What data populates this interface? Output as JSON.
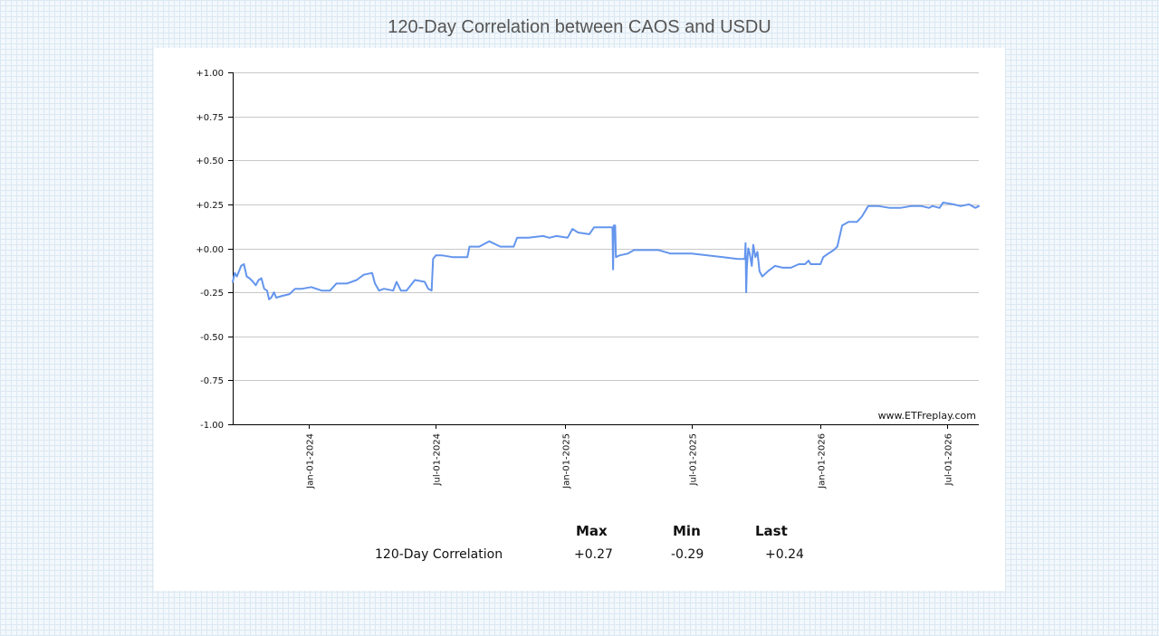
{
  "page": {
    "title": "120-Day Correlation between CAOS and USDU"
  },
  "watermark": "www.ETFreplay.com",
  "stats": {
    "headers": {
      "max": "Max",
      "min": "Min",
      "last": "Last"
    },
    "row": {
      "label": "120-Day Correlation",
      "max": "+0.27",
      "min": "-0.29",
      "last": "+0.24"
    }
  },
  "colors": {
    "line": "#6495ed",
    "grid": "#c8c8c8",
    "axis": "#000000"
  },
  "chart_data": {
    "type": "line",
    "title": "120-Day Correlation between CAOS and USDU",
    "xlabel": "",
    "ylabel": "",
    "ylim": [
      -1.0,
      1.0
    ],
    "xlim": [
      "2023-09-15",
      "2026-08-15"
    ],
    "grid": true,
    "legend": "none",
    "y_ticks": [
      {
        "value": 1.0,
        "label": "+1.00"
      },
      {
        "value": 0.75,
        "label": "+0.75"
      },
      {
        "value": 0.5,
        "label": "+0.50"
      },
      {
        "value": 0.25,
        "label": "+0.25"
      },
      {
        "value": 0.0,
        "label": "+0.00"
      },
      {
        "value": -0.25,
        "label": "-0.25"
      },
      {
        "value": -0.5,
        "label": "-0.50"
      },
      {
        "value": -0.75,
        "label": "-0.75"
      },
      {
        "value": -1.0,
        "label": "-1.00"
      }
    ],
    "x_ticks": [
      {
        "date": "2024-01-01",
        "label": "Jan-01-2024"
      },
      {
        "date": "2024-07-01",
        "label": "Jul-01-2024"
      },
      {
        "date": "2025-01-01",
        "label": "Jan-01-2025"
      },
      {
        "date": "2025-07-01",
        "label": "Jul-01-2025"
      },
      {
        "date": "2026-01-01",
        "label": "Jan-01-2026"
      },
      {
        "date": "2026-07-01",
        "label": "Jul-01-2026"
      }
    ],
    "series": [
      {
        "points": [
          [
            "2023-09-15",
            -0.19
          ],
          [
            "2023-09-18",
            -0.14
          ],
          [
            "2023-09-21",
            -0.16
          ],
          [
            "2023-09-24",
            -0.13
          ],
          [
            "2023-09-27",
            -0.1
          ],
          [
            "2023-10-01",
            -0.09
          ],
          [
            "2023-10-05",
            -0.16
          ],
          [
            "2023-10-09",
            -0.17
          ],
          [
            "2023-10-14",
            -0.19
          ],
          [
            "2023-10-18",
            -0.21
          ],
          [
            "2023-10-22",
            -0.18
          ],
          [
            "2023-10-26",
            -0.17
          ],
          [
            "2023-10-30",
            -0.23
          ],
          [
            "2023-11-03",
            -0.24
          ],
          [
            "2023-11-06",
            -0.29
          ],
          [
            "2023-11-09",
            -0.28
          ],
          [
            "2023-11-13",
            -0.25
          ],
          [
            "2023-11-16",
            -0.28
          ],
          [
            "2023-11-25",
            -0.27
          ],
          [
            "2023-12-05",
            -0.26
          ],
          [
            "2023-12-13",
            -0.23
          ],
          [
            "2023-12-23",
            -0.23
          ],
          [
            "2024-01-05",
            -0.22
          ],
          [
            "2024-01-20",
            -0.24
          ],
          [
            "2024-02-01",
            -0.24
          ],
          [
            "2024-02-10",
            -0.2
          ],
          [
            "2024-02-25",
            -0.2
          ],
          [
            "2024-03-10",
            -0.18
          ],
          [
            "2024-03-20",
            -0.15
          ],
          [
            "2024-04-01",
            -0.14
          ],
          [
            "2024-04-05",
            -0.2
          ],
          [
            "2024-04-11",
            -0.24
          ],
          [
            "2024-04-18",
            -0.23
          ],
          [
            "2024-05-01",
            -0.24
          ],
          [
            "2024-05-06",
            -0.19
          ],
          [
            "2024-05-12",
            -0.24
          ],
          [
            "2024-05-20",
            -0.24
          ],
          [
            "2024-06-01",
            -0.18
          ],
          [
            "2024-06-15",
            -0.19
          ],
          [
            "2024-06-20",
            -0.23
          ],
          [
            "2024-06-25",
            -0.24
          ],
          [
            "2024-06-27",
            -0.06
          ],
          [
            "2024-07-01",
            -0.04
          ],
          [
            "2024-07-10",
            -0.04
          ],
          [
            "2024-07-25",
            -0.05
          ],
          [
            "2024-08-15",
            -0.05
          ],
          [
            "2024-08-18",
            0.01
          ],
          [
            "2024-09-01",
            0.01
          ],
          [
            "2024-09-15",
            0.04
          ],
          [
            "2024-10-01",
            0.01
          ],
          [
            "2024-10-20",
            0.01
          ],
          [
            "2024-10-25",
            0.06
          ],
          [
            "2024-11-10",
            0.06
          ],
          [
            "2024-12-01",
            0.07
          ],
          [
            "2024-12-10",
            0.06
          ],
          [
            "2024-12-20",
            0.07
          ],
          [
            "2025-01-05",
            0.06
          ],
          [
            "2025-01-12",
            0.11
          ],
          [
            "2025-01-20",
            0.09
          ],
          [
            "2025-02-05",
            0.08
          ],
          [
            "2025-02-12",
            0.12
          ],
          [
            "2025-03-01",
            0.12
          ],
          [
            "2025-03-10",
            0.12
          ],
          [
            "2025-03-11",
            -0.12
          ],
          [
            "2025-03-12",
            0.13
          ],
          [
            "2025-03-14",
            0.13
          ],
          [
            "2025-03-15",
            -0.05
          ],
          [
            "2025-03-20",
            -0.04
          ],
          [
            "2025-04-01",
            -0.03
          ],
          [
            "2025-04-10",
            -0.01
          ],
          [
            "2025-05-15",
            -0.01
          ],
          [
            "2025-06-01",
            -0.03
          ],
          [
            "2025-07-01",
            -0.03
          ],
          [
            "2025-08-15",
            -0.05
          ],
          [
            "2025-09-05",
            -0.06
          ],
          [
            "2025-09-15",
            -0.06
          ],
          [
            "2025-09-16",
            0.03
          ],
          [
            "2025-09-17",
            -0.25
          ],
          [
            "2025-09-18",
            -0.1
          ],
          [
            "2025-09-20",
            0.0
          ],
          [
            "2025-09-22",
            -0.03
          ],
          [
            "2025-09-25",
            -0.1
          ],
          [
            "2025-09-27",
            0.02
          ],
          [
            "2025-09-30",
            -0.05
          ],
          [
            "2025-10-03",
            -0.02
          ],
          [
            "2025-10-06",
            -0.13
          ],
          [
            "2025-10-10",
            -0.16
          ],
          [
            "2025-10-18",
            -0.13
          ],
          [
            "2025-10-28",
            -0.1
          ],
          [
            "2025-11-08",
            -0.11
          ],
          [
            "2025-11-20",
            -0.11
          ],
          [
            "2025-12-01",
            -0.09
          ],
          [
            "2025-12-10",
            -0.09
          ],
          [
            "2025-12-15",
            -0.07
          ],
          [
            "2025-12-18",
            -0.09
          ],
          [
            "2026-01-01",
            -0.09
          ],
          [
            "2026-01-05",
            -0.05
          ],
          [
            "2026-01-12",
            -0.03
          ],
          [
            "2026-01-20",
            -0.01
          ],
          [
            "2026-01-25",
            0.01
          ],
          [
            "2026-02-01",
            0.13
          ],
          [
            "2026-02-10",
            0.15
          ],
          [
            "2026-02-22",
            0.15
          ],
          [
            "2026-03-01",
            0.18
          ],
          [
            "2026-03-10",
            0.24
          ],
          [
            "2026-03-25",
            0.24
          ],
          [
            "2026-04-10",
            0.23
          ],
          [
            "2026-04-25",
            0.23
          ],
          [
            "2026-05-10",
            0.24
          ],
          [
            "2026-05-25",
            0.24
          ],
          [
            "2026-06-05",
            0.23
          ],
          [
            "2026-06-10",
            0.24
          ],
          [
            "2026-06-20",
            0.23
          ],
          [
            "2026-06-25",
            0.26
          ],
          [
            "2026-07-10",
            0.25
          ],
          [
            "2026-07-20",
            0.24
          ],
          [
            "2026-08-01",
            0.25
          ],
          [
            "2026-08-10",
            0.23
          ],
          [
            "2026-08-15",
            0.24
          ]
        ]
      }
    ]
  }
}
